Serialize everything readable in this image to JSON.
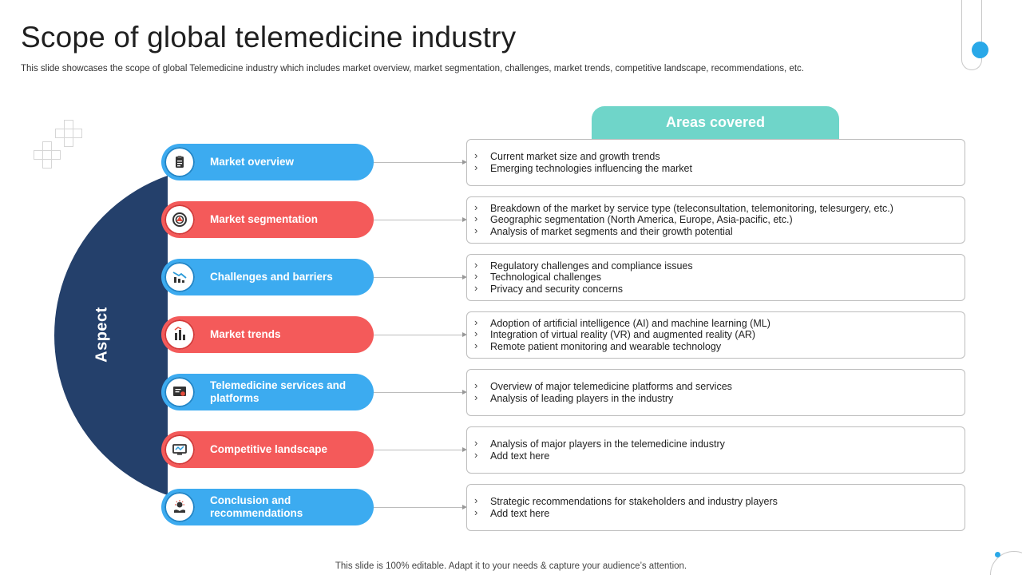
{
  "header": {
    "title": "Scope of global telemedicine industry",
    "subtitle": "This slide showcases the scope of global Telemedicine industry which includes market overview, market segmentation, challenges, market trends, competitive landscape, recommendations, etc."
  },
  "aspect_label": "Aspect",
  "areas_label": "Areas covered",
  "colors": {
    "blue": "#3cabf0",
    "red": "#f45a5a",
    "navy": "#24406b",
    "teal": "#6fd5c9"
  },
  "rows": [
    {
      "label": "Market overview",
      "color": "blue",
      "icon": "clipboard-icon",
      "points": [
        "Current  market size and growth trends",
        "Emerging technologies influencing the market"
      ]
    },
    {
      "label": "Market segmentation",
      "color": "red",
      "icon": "target-icon",
      "points": [
        "Breakdown of the market by service type (teleconsultation, telemonitoring, telesurgery, etc.)",
        "Geographic segmentation (North America, Europe, Asia-pacific, etc.)",
        "Analysis of market segments and their growth  potential"
      ]
    },
    {
      "label": "Challenges and barriers",
      "color": "blue",
      "icon": "declining-chart-icon",
      "points": [
        "Regulatory challenges and compliance issues",
        "Technological challenges",
        "Privacy and security concerns"
      ]
    },
    {
      "label": "Market trends",
      "color": "red",
      "icon": "trend-bars-icon",
      "points": [
        "Adoption of artificial intelligence (AI) and machine learning (ML)",
        "Integration of virtual reality (VR) and augmented reality (AR)",
        "Remote patient monitoring and wearable technology"
      ]
    },
    {
      "label": "Telemedicine services and platforms",
      "color": "blue",
      "icon": "certificate-icon",
      "points": [
        "Overview  of major telemedicine platforms and services",
        "Analysis of leading players in the industry"
      ]
    },
    {
      "label": "Competitive landscape",
      "color": "red",
      "icon": "monitor-icon",
      "points": [
        "Analysis of major players in the telemedicine industry",
        "Add text here"
      ]
    },
    {
      "label": "Conclusion and recommendations",
      "color": "blue",
      "icon": "idea-hand-icon",
      "points": [
        "Strategic recommendations for stakeholders and industry players",
        "Add text here"
      ]
    }
  ],
  "footer": "This slide is 100% editable. Adapt it to your needs & capture your audience’s attention."
}
